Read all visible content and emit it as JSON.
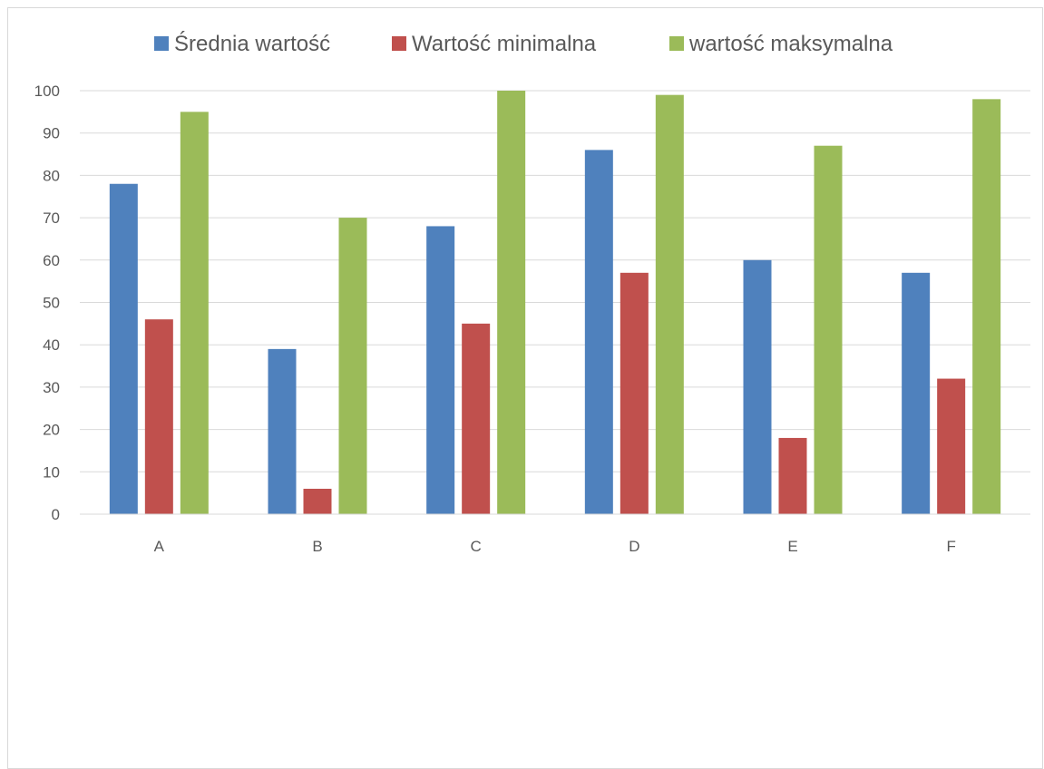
{
  "chart_data": {
    "type": "bar",
    "title": "",
    "xlabel": "",
    "ylabel": "",
    "categories": [
      "A",
      "B",
      "C",
      "D",
      "E",
      "F"
    ],
    "series": [
      {
        "name": "Średnia wartość",
        "color": "#4f81bd",
        "values": [
          78,
          39,
          68,
          86,
          60,
          57
        ]
      },
      {
        "name": "Wartość minimalna",
        "color": "#c0504d",
        "values": [
          46,
          6,
          45,
          57,
          18,
          32
        ]
      },
      {
        "name": "wartość maksymalna",
        "color": "#9bbb59",
        "values": [
          95,
          70,
          100,
          99,
          87,
          98
        ]
      }
    ],
    "ylim": [
      0,
      100
    ],
    "yticks": [
      "0",
      "10",
      "20",
      "30",
      "40",
      "50",
      "60",
      "70",
      "80",
      "90",
      "100"
    ],
    "grid": true,
    "legend_position": "top"
  }
}
